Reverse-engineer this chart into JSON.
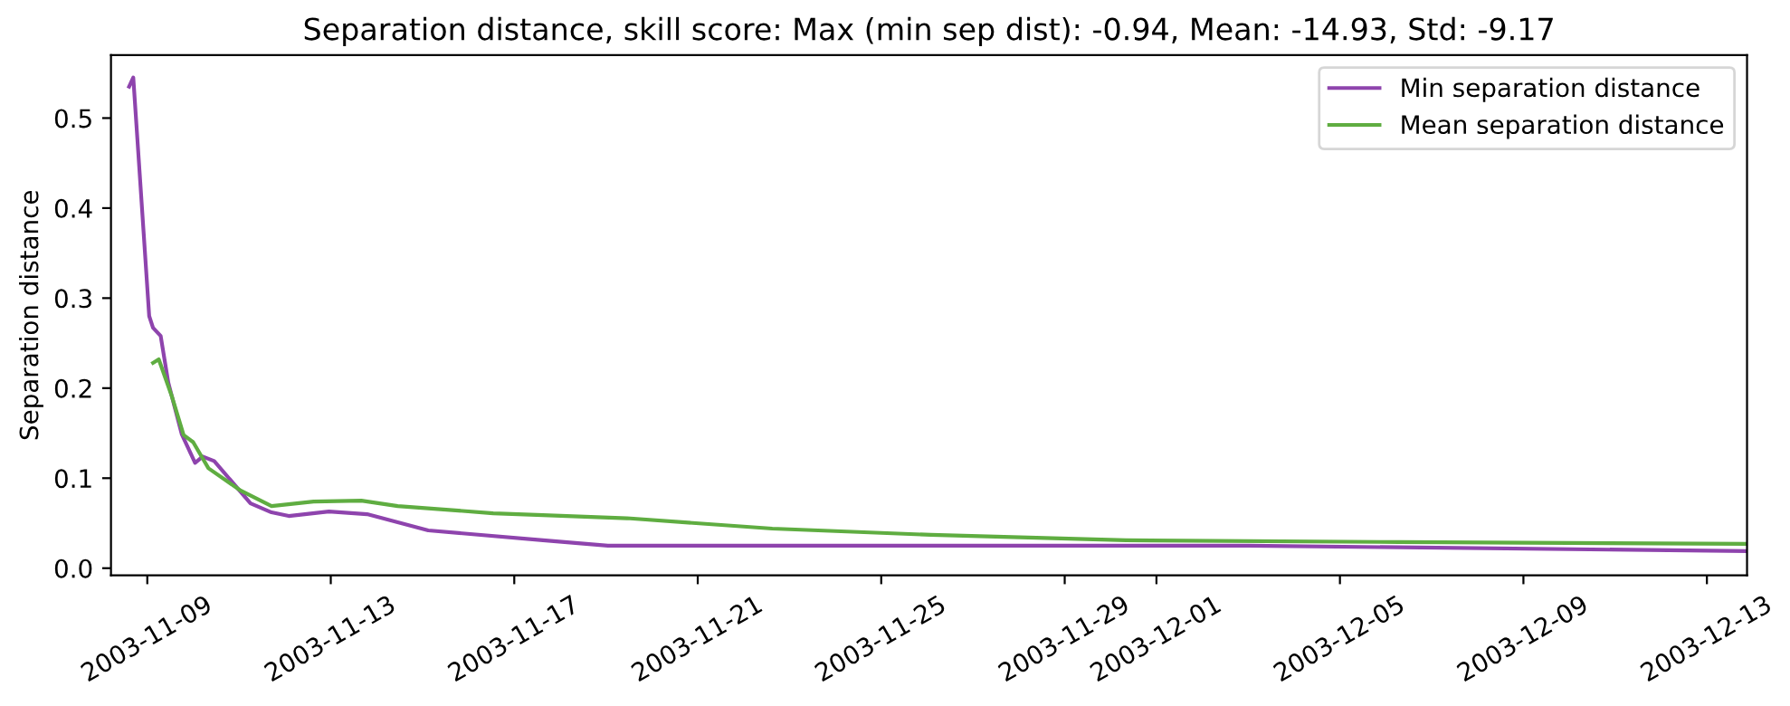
{
  "chart_data": {
    "type": "line",
    "title": "Separation distance, skill score: Max (min sep dist): -0.94, Mean: -14.93, Std: -9.17",
    "ylabel": "Separation distance",
    "xlim": [
      "2003-11-08T05:00",
      "2003-12-13T21:00"
    ],
    "xticks": [
      "2003-11-09",
      "2003-11-13",
      "2003-11-17",
      "2003-11-21",
      "2003-11-25",
      "2003-11-29",
      "2003-12-01",
      "2003-12-05",
      "2003-12-09",
      "2003-12-13"
    ],
    "ylim": [
      -0.008,
      0.57
    ],
    "yticks": [
      {
        "value": 0,
        "label": "0.0"
      },
      {
        "value": 0.1,
        "label": "0.1"
      },
      {
        "value": 0.2,
        "label": "0.2"
      },
      {
        "value": 0.3,
        "label": "0.3"
      },
      {
        "value": 0.4,
        "label": "0.4"
      },
      {
        "value": 0.5,
        "label": "0.5"
      }
    ],
    "grid": false,
    "legend": "top right",
    "series": [
      {
        "name": "Min separation distance",
        "color": "#8e44ad",
        "x": [
          "2003-11-08T14:30",
          "2003-11-08T16:40",
          "2003-11-09T01:00",
          "2003-11-09T03:00",
          "2003-11-09T07:00",
          "2003-11-09T11:00",
          "2003-11-09T18:00",
          "2003-11-10T01:00",
          "2003-11-10T05:00",
          "2003-11-10T11:00",
          "2003-11-11T06:00",
          "2003-11-11T17:00",
          "2003-11-12T02:00",
          "2003-11-12T23:00",
          "2003-11-13T19:00",
          "2003-11-15T03:00",
          "2003-11-17T15:00",
          "2003-11-19T01:00",
          "2003-12-03T00:00",
          "2003-12-13T21:00"
        ],
        "values": [
          0.535,
          0.545,
          0.28,
          0.267,
          0.258,
          0.206,
          0.149,
          0.117,
          0.124,
          0.119,
          0.072,
          0.062,
          0.058,
          0.063,
          0.06,
          0.042,
          0.031,
          0.025,
          0.025,
          0.019
        ]
      },
      {
        "name": "Mean separation distance",
        "color": "#5fad41",
        "x": [
          "2003-11-09T03:00",
          "2003-11-09T06:00",
          "2003-11-09T13:00",
          "2003-11-09T19:00",
          "2003-11-10T00:00",
          "2003-11-10T08:00",
          "2003-11-11T01:00",
          "2003-11-11T17:00",
          "2003-11-12T15:00",
          "2003-11-13T16:00",
          "2003-11-14T11:00",
          "2003-11-16T13:00",
          "2003-11-17T15:00",
          "2003-11-19T11:00",
          "2003-11-22T15:00",
          "2003-11-26T02:00",
          "2003-11-30T08:00",
          "2003-12-06T07:00",
          "2003-12-13T21:00"
        ],
        "values": [
          0.228,
          0.232,
          0.19,
          0.148,
          0.14,
          0.111,
          0.086,
          0.069,
          0.074,
          0.075,
          0.069,
          0.061,
          0.059,
          0.0555,
          0.044,
          0.037,
          0.031,
          0.029,
          0.027
        ]
      }
    ]
  }
}
